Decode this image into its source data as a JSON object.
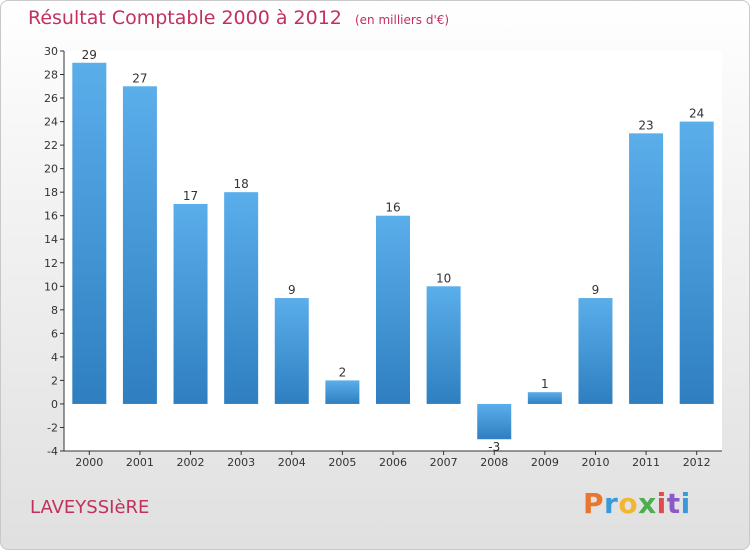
{
  "chart_data": {
    "type": "bar",
    "title": "Résultat Comptable 2000 à 2012",
    "subtitle": "(en milliers d'€)",
    "xlabel": "",
    "ylabel": "",
    "categories": [
      "2000",
      "2001",
      "2002",
      "2003",
      "2004",
      "2005",
      "2006",
      "2007",
      "2008",
      "2009",
      "2010",
      "2011",
      "2012"
    ],
    "values": [
      29,
      27,
      17,
      18,
      9,
      2,
      16,
      10,
      -3,
      1,
      9,
      23,
      24
    ],
    "ylim": [
      -4,
      30
    ],
    "yticks": [
      -4,
      -2,
      0,
      2,
      4,
      6,
      8,
      10,
      12,
      14,
      16,
      18,
      20,
      22,
      24,
      26,
      28,
      30
    ],
    "grid": false,
    "bar_color": "#4a9fe0"
  },
  "footer": {
    "commune": "LAVEYSSIèRE",
    "logo_letters": [
      "P",
      "r",
      "o",
      "x",
      "i",
      "t",
      "i"
    ],
    "logo_colors": [
      "#e8762c",
      "#3a9ad9",
      "#f2b632",
      "#4cae4c",
      "#e04a4a",
      "#8a5bc7",
      "#3a9ad9"
    ]
  }
}
